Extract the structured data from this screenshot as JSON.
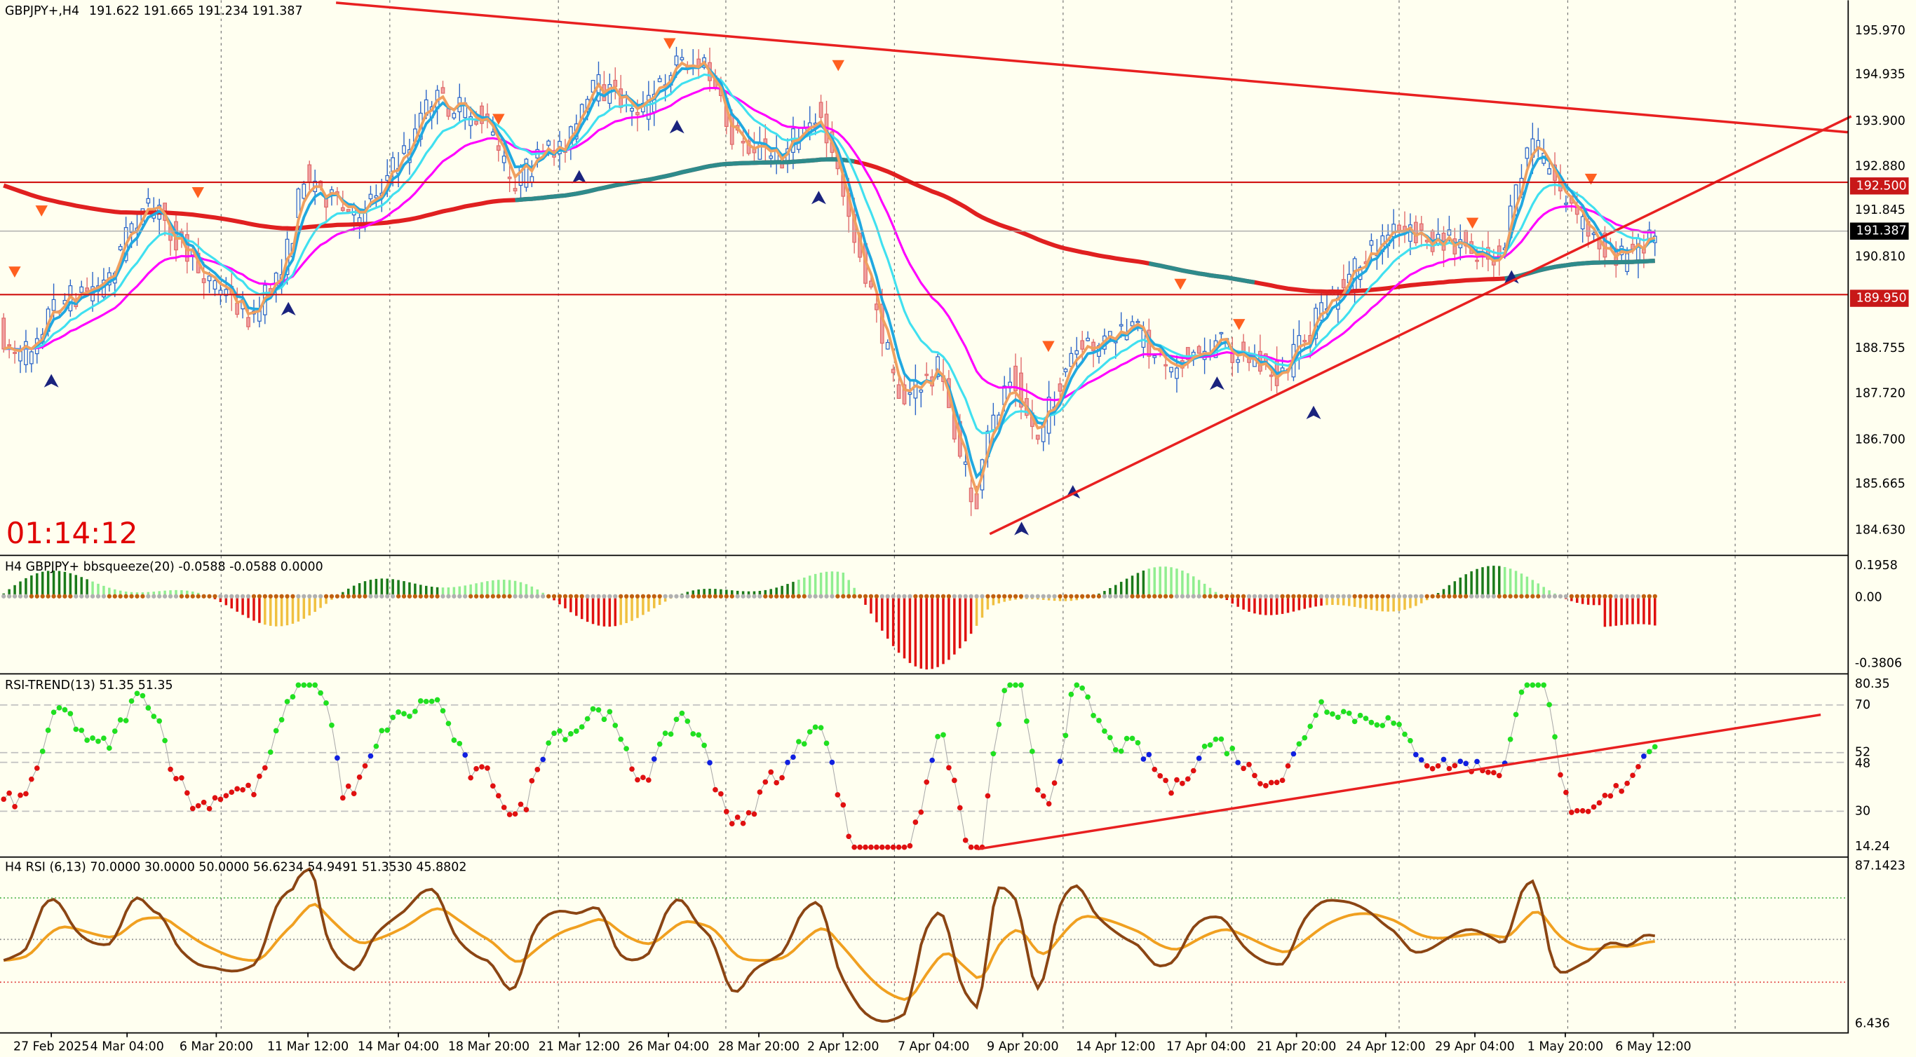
{
  "header": {
    "symbol": "GBPJPY+,H4",
    "ohlc": "191.622 191.665 191.234 191.387"
  },
  "timer": "01:14:12",
  "price_axis": [
    "195.970",
    "194.935",
    "193.900",
    "192.880",
    "191.845",
    "190.810",
    "188.755",
    "187.720",
    "186.700",
    "185.665",
    "184.630"
  ],
  "price_tags": {
    "resistance": "192.500",
    "current": "191.387",
    "support": "189.950"
  },
  "bbsqueeze": {
    "label": "H4 GBPJPY+ bbsqueeze(20) -0.0588 -0.0588 0.0000",
    "axis": [
      "0.1958",
      "0.00",
      "-0.3806"
    ]
  },
  "rsi_trend": {
    "label": "RSI-TREND(13) 51.35 51.35",
    "axis": [
      "80.35",
      "70",
      "52",
      "48",
      "30",
      "14.24"
    ]
  },
  "rsi": {
    "label": "H4 RSI  (6,13) 70.0000 30.0000 50.0000 56.6234 54.9491 51.3530 45.8802",
    "axis": [
      "87.1423",
      "6.436"
    ]
  },
  "time_axis": [
    "27 Feb 2025",
    "4 Mar 04:00",
    "6 Mar 20:00",
    "11 Mar 12:00",
    "14 Mar 04:00",
    "18 Mar 20:00",
    "21 Mar 12:00",
    "26 Mar 04:00",
    "28 Mar 20:00",
    "2 Apr 12:00",
    "7 Apr 04:00",
    "9 Apr 20:00",
    "14 Apr 12:00",
    "17 Apr 04:00",
    "21 Apr 20:00",
    "24 Apr 12:00",
    "29 Apr 04:00",
    "1 May 20:00",
    "6 May 12:00"
  ]
}
